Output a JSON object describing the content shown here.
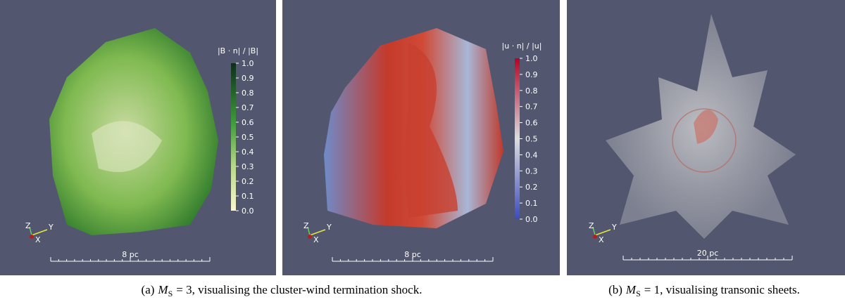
{
  "panels": [
    {
      "colorbar": {
        "label": "|B · n| / |B|",
        "ticks": [
          "1.0",
          "0.9",
          "0.8",
          "0.7",
          "0.6",
          "0.5",
          "0.4",
          "0.3",
          "0.2",
          "0.1",
          "0.0"
        ]
      },
      "axes_labels": [
        "Z",
        "Y",
        "X"
      ],
      "scale_bar": "8 pc"
    },
    {
      "colorbar": {
        "label": "|u · n| / |u|",
        "ticks": [
          "1.0",
          "0.9",
          "0.8",
          "0.7",
          "0.6",
          "0.5",
          "0.4",
          "0.3",
          "0.2",
          "0.1",
          "0.0"
        ]
      },
      "axes_labels": [
        "Z",
        "Y",
        "X"
      ],
      "scale_bar": "8 pc"
    },
    {
      "axes_labels": [
        "Z",
        "Y",
        "X"
      ],
      "scale_bar": "20 pc"
    }
  ],
  "captions": [
    {
      "label": "(a)",
      "symbol": "M",
      "subscript": "S",
      "text": "= 3, visualising the cluster-wind termination shock."
    },
    {
      "label": "(b)",
      "symbol": "M",
      "subscript": "S",
      "text": "= 1, visualising transonic sheets."
    }
  ]
}
